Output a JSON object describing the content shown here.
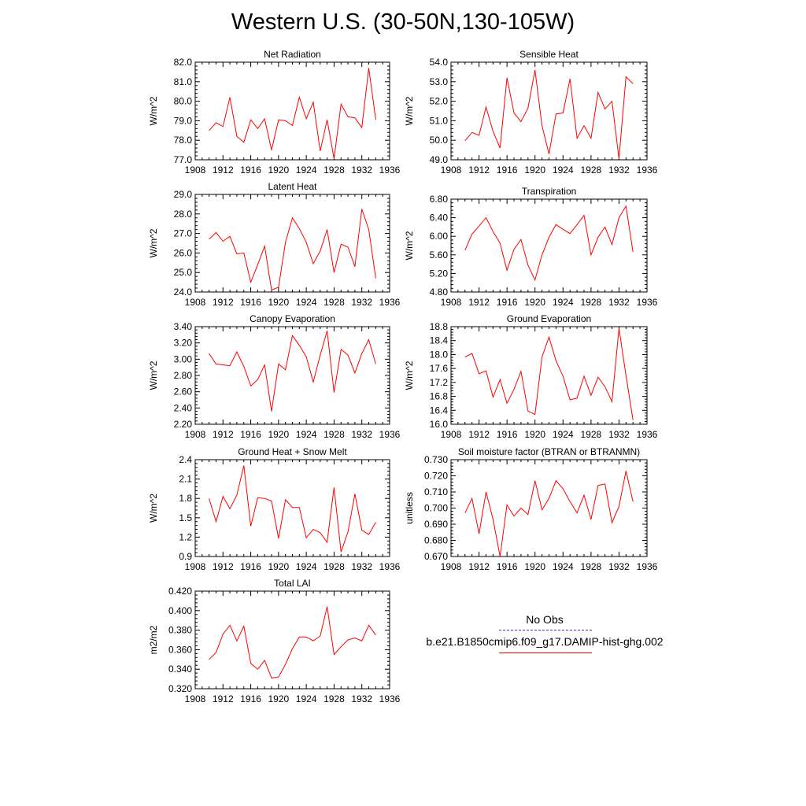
{
  "title": "Western U.S. (30-50N,130-105W)",
  "colors": {
    "model": "#ff0000",
    "obs": "#0000ff",
    "axis": "#000000"
  },
  "legend": {
    "obs_label": "No Obs",
    "model_label": "b.e21.B1850cmip6.f09_g17.DAMIP-hist-ghg.002"
  },
  "chart_data": [
    {
      "type": "line",
      "title": "Net Radiation",
      "ylabel": "W/m^2",
      "xlim": [
        1908,
        1936
      ],
      "ylim": [
        77.0,
        82.0
      ],
      "yticks": [
        "77.0",
        "78.0",
        "79.0",
        "80.0",
        "81.0",
        "82.0"
      ],
      "xticks": [
        "1908",
        "1912",
        "1916",
        "1920",
        "1924",
        "1928",
        "1932",
        "1936"
      ],
      "x": [
        1910,
        1911,
        1912,
        1913,
        1914,
        1915,
        1916,
        1917,
        1918,
        1919,
        1920,
        1921,
        1922,
        1923,
        1924,
        1925,
        1926,
        1927,
        1928,
        1929,
        1930,
        1931,
        1932,
        1933,
        1934
      ],
      "series": [
        {
          "values": [
            78.5,
            78.9,
            78.7,
            80.2,
            78.2,
            77.9,
            79.05,
            78.6,
            79.1,
            77.5,
            79.05,
            79.0,
            78.75,
            80.2,
            79.1,
            79.95,
            77.45,
            79.05,
            77.05,
            79.85,
            79.2,
            79.15,
            78.65,
            81.7,
            79.05
          ]
        }
      ]
    },
    {
      "type": "line",
      "title": "Sensible Heat",
      "ylabel": "W/m^2",
      "xlim": [
        1908,
        1936
      ],
      "ylim": [
        49.0,
        54.0
      ],
      "yticks": [
        "49.0",
        "50.0",
        "51.0",
        "52.0",
        "53.0",
        "54.0"
      ],
      "xticks": [
        "1908",
        "1912",
        "1916",
        "1920",
        "1924",
        "1928",
        "1932",
        "1936"
      ],
      "x": [
        1910,
        1911,
        1912,
        1913,
        1914,
        1915,
        1916,
        1917,
        1918,
        1919,
        1920,
        1921,
        1922,
        1923,
        1924,
        1925,
        1926,
        1927,
        1928,
        1929,
        1930,
        1931,
        1932,
        1933,
        1934
      ],
      "series": [
        {
          "values": [
            49.98,
            50.4,
            50.25,
            51.7,
            50.45,
            49.6,
            53.2,
            51.4,
            50.95,
            51.65,
            53.6,
            50.75,
            49.3,
            51.35,
            51.4,
            53.15,
            50.1,
            50.75,
            50.1,
            52.45,
            51.6,
            52.0,
            49.05,
            53.25,
            52.9
          ]
        }
      ]
    },
    {
      "type": "line",
      "title": "Latent Heat",
      "ylabel": "W/m^2",
      "xlim": [
        1908,
        1936
      ],
      "ylim": [
        24.0,
        29.0
      ],
      "yticks": [
        "24.0",
        "25.0",
        "26.0",
        "27.0",
        "28.0",
        "29.0"
      ],
      "xticks": [
        "1908",
        "1912",
        "1916",
        "1920",
        "1924",
        "1928",
        "1932",
        "1936"
      ],
      "x": [
        1910,
        1911,
        1912,
        1913,
        1914,
        1915,
        1916,
        1917,
        1918,
        1919,
        1920,
        1921,
        1922,
        1923,
        1924,
        1925,
        1926,
        1927,
        1928,
        1929,
        1930,
        1931,
        1932,
        1933,
        1934
      ],
      "series": [
        {
          "values": [
            26.7,
            27.05,
            26.6,
            26.85,
            25.95,
            26.0,
            24.5,
            25.4,
            26.35,
            24.1,
            24.25,
            26.55,
            27.8,
            27.25,
            26.55,
            25.45,
            26.1,
            27.2,
            25.0,
            26.45,
            26.3,
            25.3,
            28.25,
            27.2,
            24.7
          ]
        }
      ]
    },
    {
      "type": "line",
      "title": "Transpiration",
      "ylabel": "W/m^2",
      "xlim": [
        1908,
        1936
      ],
      "ylim": [
        4.8,
        6.8
      ],
      "yticks": [
        "4.80",
        "5.20",
        "5.60",
        "6.00",
        "6.40",
        "6.80"
      ],
      "xticks": [
        "1908",
        "1912",
        "1916",
        "1920",
        "1924",
        "1928",
        "1932",
        "1936"
      ],
      "x": [
        1910,
        1911,
        1912,
        1913,
        1914,
        1915,
        1916,
        1917,
        1918,
        1919,
        1920,
        1921,
        1922,
        1923,
        1924,
        1925,
        1926,
        1927,
        1928,
        1929,
        1930,
        1931,
        1932,
        1933,
        1934
      ],
      "series": [
        {
          "values": [
            5.7,
            6.05,
            6.22,
            6.4,
            6.1,
            5.85,
            5.27,
            5.72,
            5.93,
            5.38,
            5.06,
            5.6,
            5.98,
            6.25,
            6.15,
            6.06,
            6.25,
            6.45,
            5.6,
            5.98,
            6.2,
            5.82,
            6.4,
            6.65,
            5.66
          ]
        }
      ]
    },
    {
      "type": "line",
      "title": "Canopy Evaporation",
      "ylabel": "W/m^2",
      "xlim": [
        1908,
        1936
      ],
      "ylim": [
        2.2,
        3.4
      ],
      "yticks": [
        "2.20",
        "2.40",
        "2.60",
        "2.80",
        "3.00",
        "3.20",
        "3.40"
      ],
      "xticks": [
        "1908",
        "1912",
        "1916",
        "1920",
        "1924",
        "1928",
        "1932",
        "1936"
      ],
      "x": [
        1910,
        1911,
        1912,
        1913,
        1914,
        1915,
        1916,
        1917,
        1918,
        1919,
        1920,
        1921,
        1922,
        1923,
        1924,
        1925,
        1926,
        1927,
        1928,
        1929,
        1930,
        1931,
        1932,
        1933,
        1934
      ],
      "series": [
        {
          "values": [
            3.07,
            2.94,
            2.93,
            2.92,
            3.09,
            2.91,
            2.67,
            2.75,
            2.93,
            2.36,
            2.94,
            2.87,
            3.29,
            3.17,
            3.03,
            2.72,
            3.05,
            3.35,
            2.59,
            3.12,
            3.05,
            2.83,
            3.07,
            3.24,
            2.94
          ]
        }
      ]
    },
    {
      "type": "line",
      "title": "Ground Evaporation",
      "ylabel": "W/m^2",
      "xlim": [
        1908,
        1936
      ],
      "ylim": [
        16.0,
        18.8
      ],
      "yticks": [
        "16.0",
        "16.4",
        "16.8",
        "17.2",
        "17.6",
        "18.0",
        "18.4",
        "18.8"
      ],
      "xticks": [
        "1908",
        "1912",
        "1916",
        "1920",
        "1924",
        "1928",
        "1932",
        "1936"
      ],
      "x": [
        1910,
        1911,
        1912,
        1913,
        1914,
        1915,
        1916,
        1917,
        1918,
        1919,
        1920,
        1921,
        1922,
        1923,
        1924,
        1925,
        1926,
        1927,
        1928,
        1929,
        1930,
        1931,
        1932,
        1933,
        1934
      ],
      "series": [
        {
          "values": [
            17.93,
            18.03,
            17.45,
            17.53,
            16.78,
            17.28,
            16.6,
            17.0,
            17.52,
            16.38,
            16.28,
            17.93,
            18.5,
            17.82,
            17.38,
            16.7,
            16.75,
            17.38,
            16.83,
            17.35,
            17.08,
            16.65,
            18.75,
            17.4,
            16.12
          ]
        }
      ]
    },
    {
      "type": "line",
      "title": "Ground Heat + Snow Melt",
      "ylabel": "W/m^2",
      "xlim": [
        1908,
        1936
      ],
      "ylim": [
        0.9,
        2.4
      ],
      "yticks": [
        "0.9",
        "1.2",
        "1.5",
        "1.8",
        "2.1",
        "2.4"
      ],
      "xticks": [
        "1908",
        "1912",
        "1916",
        "1920",
        "1924",
        "1928",
        "1932",
        "1936"
      ],
      "x": [
        1910,
        1911,
        1912,
        1913,
        1914,
        1915,
        1916,
        1917,
        1918,
        1919,
        1920,
        1921,
        1922,
        1923,
        1924,
        1925,
        1926,
        1927,
        1928,
        1929,
        1930,
        1931,
        1932,
        1933,
        1934
      ],
      "series": [
        {
          "values": [
            1.8,
            1.44,
            1.83,
            1.64,
            1.85,
            2.31,
            1.37,
            1.81,
            1.8,
            1.76,
            1.18,
            1.78,
            1.66,
            1.66,
            1.19,
            1.32,
            1.27,
            1.12,
            1.97,
            0.97,
            1.28,
            1.87,
            1.31,
            1.24,
            1.43
          ]
        }
      ]
    },
    {
      "type": "line",
      "title": "Soil moisture factor (BTRAN or BTRANMN)",
      "ylabel": "unitless",
      "xlim": [
        1908,
        1936
      ],
      "ylim": [
        0.67,
        0.73
      ],
      "yticks": [
        "0.670",
        "0.680",
        "0.690",
        "0.700",
        "0.710",
        "0.720",
        "0.730"
      ],
      "xticks": [
        "1908",
        "1912",
        "1916",
        "1920",
        "1924",
        "1928",
        "1932",
        "1936"
      ],
      "x": [
        1910,
        1911,
        1912,
        1913,
        1914,
        1915,
        1916,
        1917,
        1918,
        1919,
        1920,
        1921,
        1922,
        1923,
        1924,
        1925,
        1926,
        1927,
        1928,
        1929,
        1930,
        1931,
        1932,
        1933,
        1934
      ],
      "series": [
        {
          "values": [
            0.697,
            0.706,
            0.684,
            0.71,
            0.693,
            0.67,
            0.702,
            0.695,
            0.7,
            0.696,
            0.717,
            0.699,
            0.706,
            0.717,
            0.712,
            0.704,
            0.697,
            0.708,
            0.693,
            0.714,
            0.715,
            0.691,
            0.701,
            0.723,
            0.704
          ]
        }
      ]
    },
    {
      "type": "line",
      "title": "Total LAI",
      "ylabel": "m2/m2",
      "xlim": [
        1908,
        1936
      ],
      "ylim": [
        0.32,
        0.42
      ],
      "yticks": [
        "0.320",
        "0.340",
        "0.360",
        "0.380",
        "0.400",
        "0.420"
      ],
      "xticks": [
        "1908",
        "1912",
        "1916",
        "1920",
        "1924",
        "1928",
        "1932",
        "1936"
      ],
      "x": [
        1910,
        1911,
        1912,
        1913,
        1914,
        1915,
        1916,
        1917,
        1918,
        1919,
        1920,
        1921,
        1922,
        1923,
        1924,
        1925,
        1926,
        1927,
        1928,
        1929,
        1930,
        1931,
        1932,
        1933,
        1934
      ],
      "series": [
        {
          "values": [
            0.35,
            0.357,
            0.376,
            0.385,
            0.369,
            0.384,
            0.346,
            0.34,
            0.349,
            0.331,
            0.332,
            0.345,
            0.361,
            0.373,
            0.373,
            0.369,
            0.374,
            0.404,
            0.355,
            0.363,
            0.37,
            0.372,
            0.369,
            0.385,
            0.375
          ]
        }
      ]
    }
  ]
}
